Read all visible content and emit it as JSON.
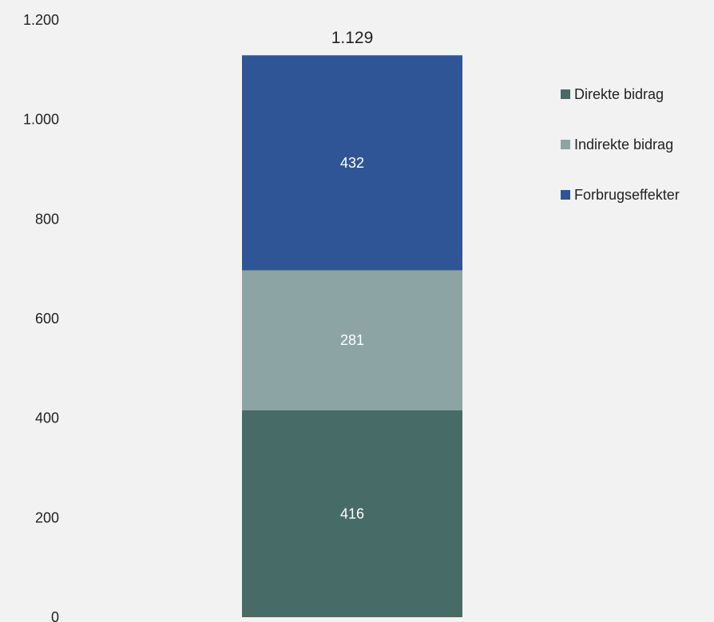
{
  "chart_data": {
    "type": "bar",
    "stacked": true,
    "categories": [
      ""
    ],
    "series": [
      {
        "name": "Direkte bidrag",
        "values": [
          416
        ],
        "color": "#476b67",
        "label": "416"
      },
      {
        "name": "Indirekte bidrag",
        "values": [
          281
        ],
        "color": "#8ca5a4",
        "label": "281"
      },
      {
        "name": "Forbrugseffekter",
        "values": [
          432
        ],
        "color": "#2f5597",
        "label": "432"
      }
    ],
    "total": 1129,
    "total_label": "1.129",
    "ylim": [
      0,
      1200
    ],
    "y_ticks": [
      {
        "value": 0,
        "label": "0"
      },
      {
        "value": 200,
        "label": "200"
      },
      {
        "value": 400,
        "label": "400"
      },
      {
        "value": 600,
        "label": "600"
      },
      {
        "value": 800,
        "label": "800"
      },
      {
        "value": 1000,
        "label": "1.000"
      },
      {
        "value": 1200,
        "label": "1.200"
      }
    ],
    "legend_position": "top-right",
    "grid": false
  }
}
